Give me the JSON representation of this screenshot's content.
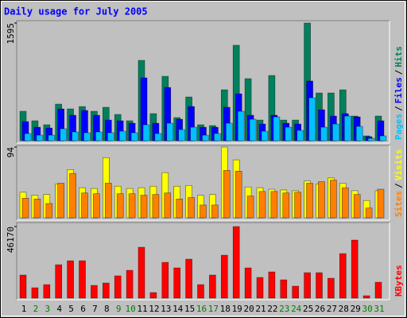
{
  "legend_separator": "/",
  "chart_data": [
    {
      "type": "bar",
      "title": "Daily usage for July 2005",
      "title_color": "#0000ff",
      "ylim": [
        0,
        1595
      ],
      "yticks": [
        1595
      ],
      "series": [
        {
          "name": "Hits",
          "color": "#00805c",
          "values": [
            399,
            270,
            216,
            496,
            431,
            463,
            399,
            453,
            356,
            270,
            1089,
            367,
            873,
            313,
            593,
            216,
            205,
            690,
            1294,
            841,
            280,
            884,
            280,
            280,
            1595,
            647,
            647,
            690,
            334,
            65,
            334
          ]
        },
        {
          "name": "Files",
          "color": "#0000ff",
          "values": [
            259,
            183,
            172,
            431,
            345,
            410,
            345,
            280,
            270,
            237,
            852,
            237,
            722,
            291,
            464,
            183,
            183,
            453,
            636,
            345,
            226,
            345,
            237,
            226,
            809,
            420,
            334,
            367,
            323,
            54,
            270
          ]
        },
        {
          "name": "Pages",
          "color": "#00c0ff",
          "values": [
            97,
            75,
            75,
            162,
            119,
            108,
            119,
            108,
            129,
            108,
            216,
            97,
            237,
            151,
            183,
            75,
            97,
            237,
            399,
            291,
            129,
            323,
            183,
            140,
            582,
            183,
            226,
            334,
            194,
            32,
            65
          ]
        }
      ]
    },
    {
      "type": "bar",
      "ylim": [
        0,
        94
      ],
      "yticks": [
        94
      ],
      "series": [
        {
          "name": "Visits",
          "color": "#ffff00",
          "values": [
            34,
            30,
            31,
            45,
            64,
            40,
            39,
            80,
            42,
            39,
            40,
            42,
            60,
            42,
            43,
            30,
            31,
            94,
            77,
            41,
            40,
            38,
            37,
            36,
            49,
            45,
            53,
            46,
            36,
            23,
            36
          ]
        },
        {
          "name": "Sites",
          "color": "#ff8000",
          "values": [
            26,
            25,
            19,
            46,
            59,
            33,
            32,
            46,
            32,
            32,
            30,
            31,
            33,
            25,
            27,
            17,
            17,
            63,
            62,
            29,
            35,
            35,
            33,
            34,
            46,
            48,
            50,
            40,
            31,
            13,
            38
          ]
        }
      ]
    },
    {
      "type": "bar",
      "ylim": [
        0,
        46170
      ],
      "yticks": [
        46170
      ],
      "categories": [
        "1",
        "2",
        "3",
        "4",
        "5",
        "6",
        "7",
        "8",
        "9",
        "10",
        "11",
        "12",
        "13",
        "14",
        "15",
        "16",
        "17",
        "18",
        "19",
        "20",
        "21",
        "22",
        "23",
        "24",
        "25",
        "26",
        "27",
        "28",
        "29",
        "30",
        "31"
      ],
      "category_colors": [
        "#000000",
        "#008000",
        "#008000",
        "#000000",
        "#000000",
        "#000000",
        "#000000",
        "#000000",
        "#008000",
        "#008000",
        "#000000",
        "#000000",
        "#000000",
        "#000000",
        "#000000",
        "#008000",
        "#008000",
        "#000000",
        "#000000",
        "#000000",
        "#000000",
        "#000000",
        "#008000",
        "#008000",
        "#000000",
        "#000000",
        "#000000",
        "#000000",
        "#000000",
        "#008000",
        "#008000"
      ],
      "series": [
        {
          "name": "KBytes",
          "color": "#ff0000",
          "values": [
            14877,
            6669,
            8721,
            21546,
            24111,
            24111,
            8208,
            9747,
            14364,
            17955,
            32832,
            3591,
            23085,
            19494,
            25137,
            8721,
            14877,
            27702,
            46170,
            19494,
            13338,
            16929,
            11799,
            7695,
            16416,
            16416,
            12825,
            28728,
            37449,
            1539,
            10260
          ]
        }
      ]
    }
  ]
}
